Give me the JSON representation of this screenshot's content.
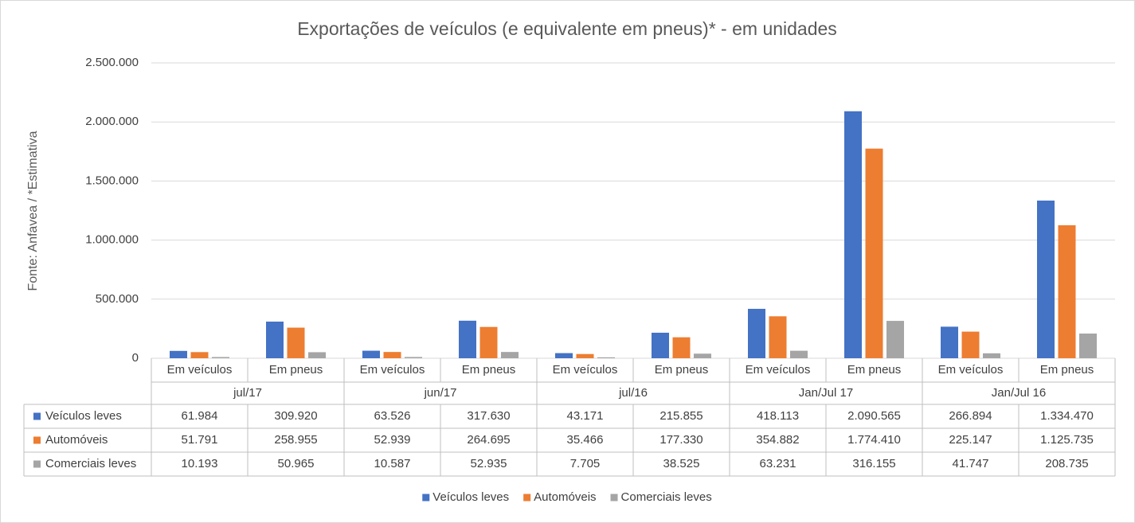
{
  "chart_data": {
    "type": "bar",
    "title": "Exportações de veículos (e equivalente em pneus)* - em unidades",
    "y_label": "Fonte: Anfavea / *Estimativa",
    "categories": [
      "Em veículos",
      "Em pneus",
      "Em veículos",
      "Em pneus",
      "Em veículos",
      "Em pneus",
      "Em veículos",
      "Em pneus",
      "Em veículos",
      "Em pneus"
    ],
    "category_groups": [
      "jul/17",
      "jun/17",
      "jul/16",
      "Jan/Jul 17",
      "Jan/Jul 16"
    ],
    "series": [
      {
        "name": "Veículos leves",
        "color": "#4472c4",
        "values": [
          61984,
          309920,
          63526,
          317630,
          43171,
          215855,
          418113,
          2090565,
          266894,
          1334470
        ],
        "value_labels": [
          "61.984",
          "309.920",
          "63.526",
          "317.630",
          "43.171",
          "215.855",
          "418.113",
          "2.090.565",
          "266.894",
          "1.334.470"
        ]
      },
      {
        "name": "Automóveis",
        "color": "#ed7d31",
        "values": [
          51791,
          258955,
          52939,
          264695,
          35466,
          177330,
          354882,
          1774410,
          225147,
          1125735
        ],
        "value_labels": [
          "51.791",
          "258.955",
          "52.939",
          "264.695",
          "35.466",
          "177.330",
          "354.882",
          "1.774.410",
          "225.147",
          "1.125.735"
        ]
      },
      {
        "name": "Comerciais leves",
        "color": "#a5a5a5",
        "values": [
          10193,
          50965,
          10587,
          52935,
          7705,
          38525,
          63231,
          316155,
          41747,
          208735
        ],
        "value_labels": [
          "10.193",
          "50.965",
          "10.587",
          "52.935",
          "7.705",
          "38.525",
          "63.231",
          "316.155",
          "41.747",
          "208.735"
        ]
      }
    ],
    "ylim": [
      0,
      2500000
    ],
    "yticks": [
      0,
      {
        "value": 500000,
        "label": "500.000"
      },
      {
        "value": 1000000,
        "label": "1.000.000"
      },
      {
        "value": 1500000,
        "label": "1.500.000"
      },
      {
        "value": 2000000,
        "label": "2.000.000"
      },
      {
        "value": 2500000,
        "label": "2.500.000"
      }
    ],
    "grid": true,
    "legend": "bottom"
  }
}
